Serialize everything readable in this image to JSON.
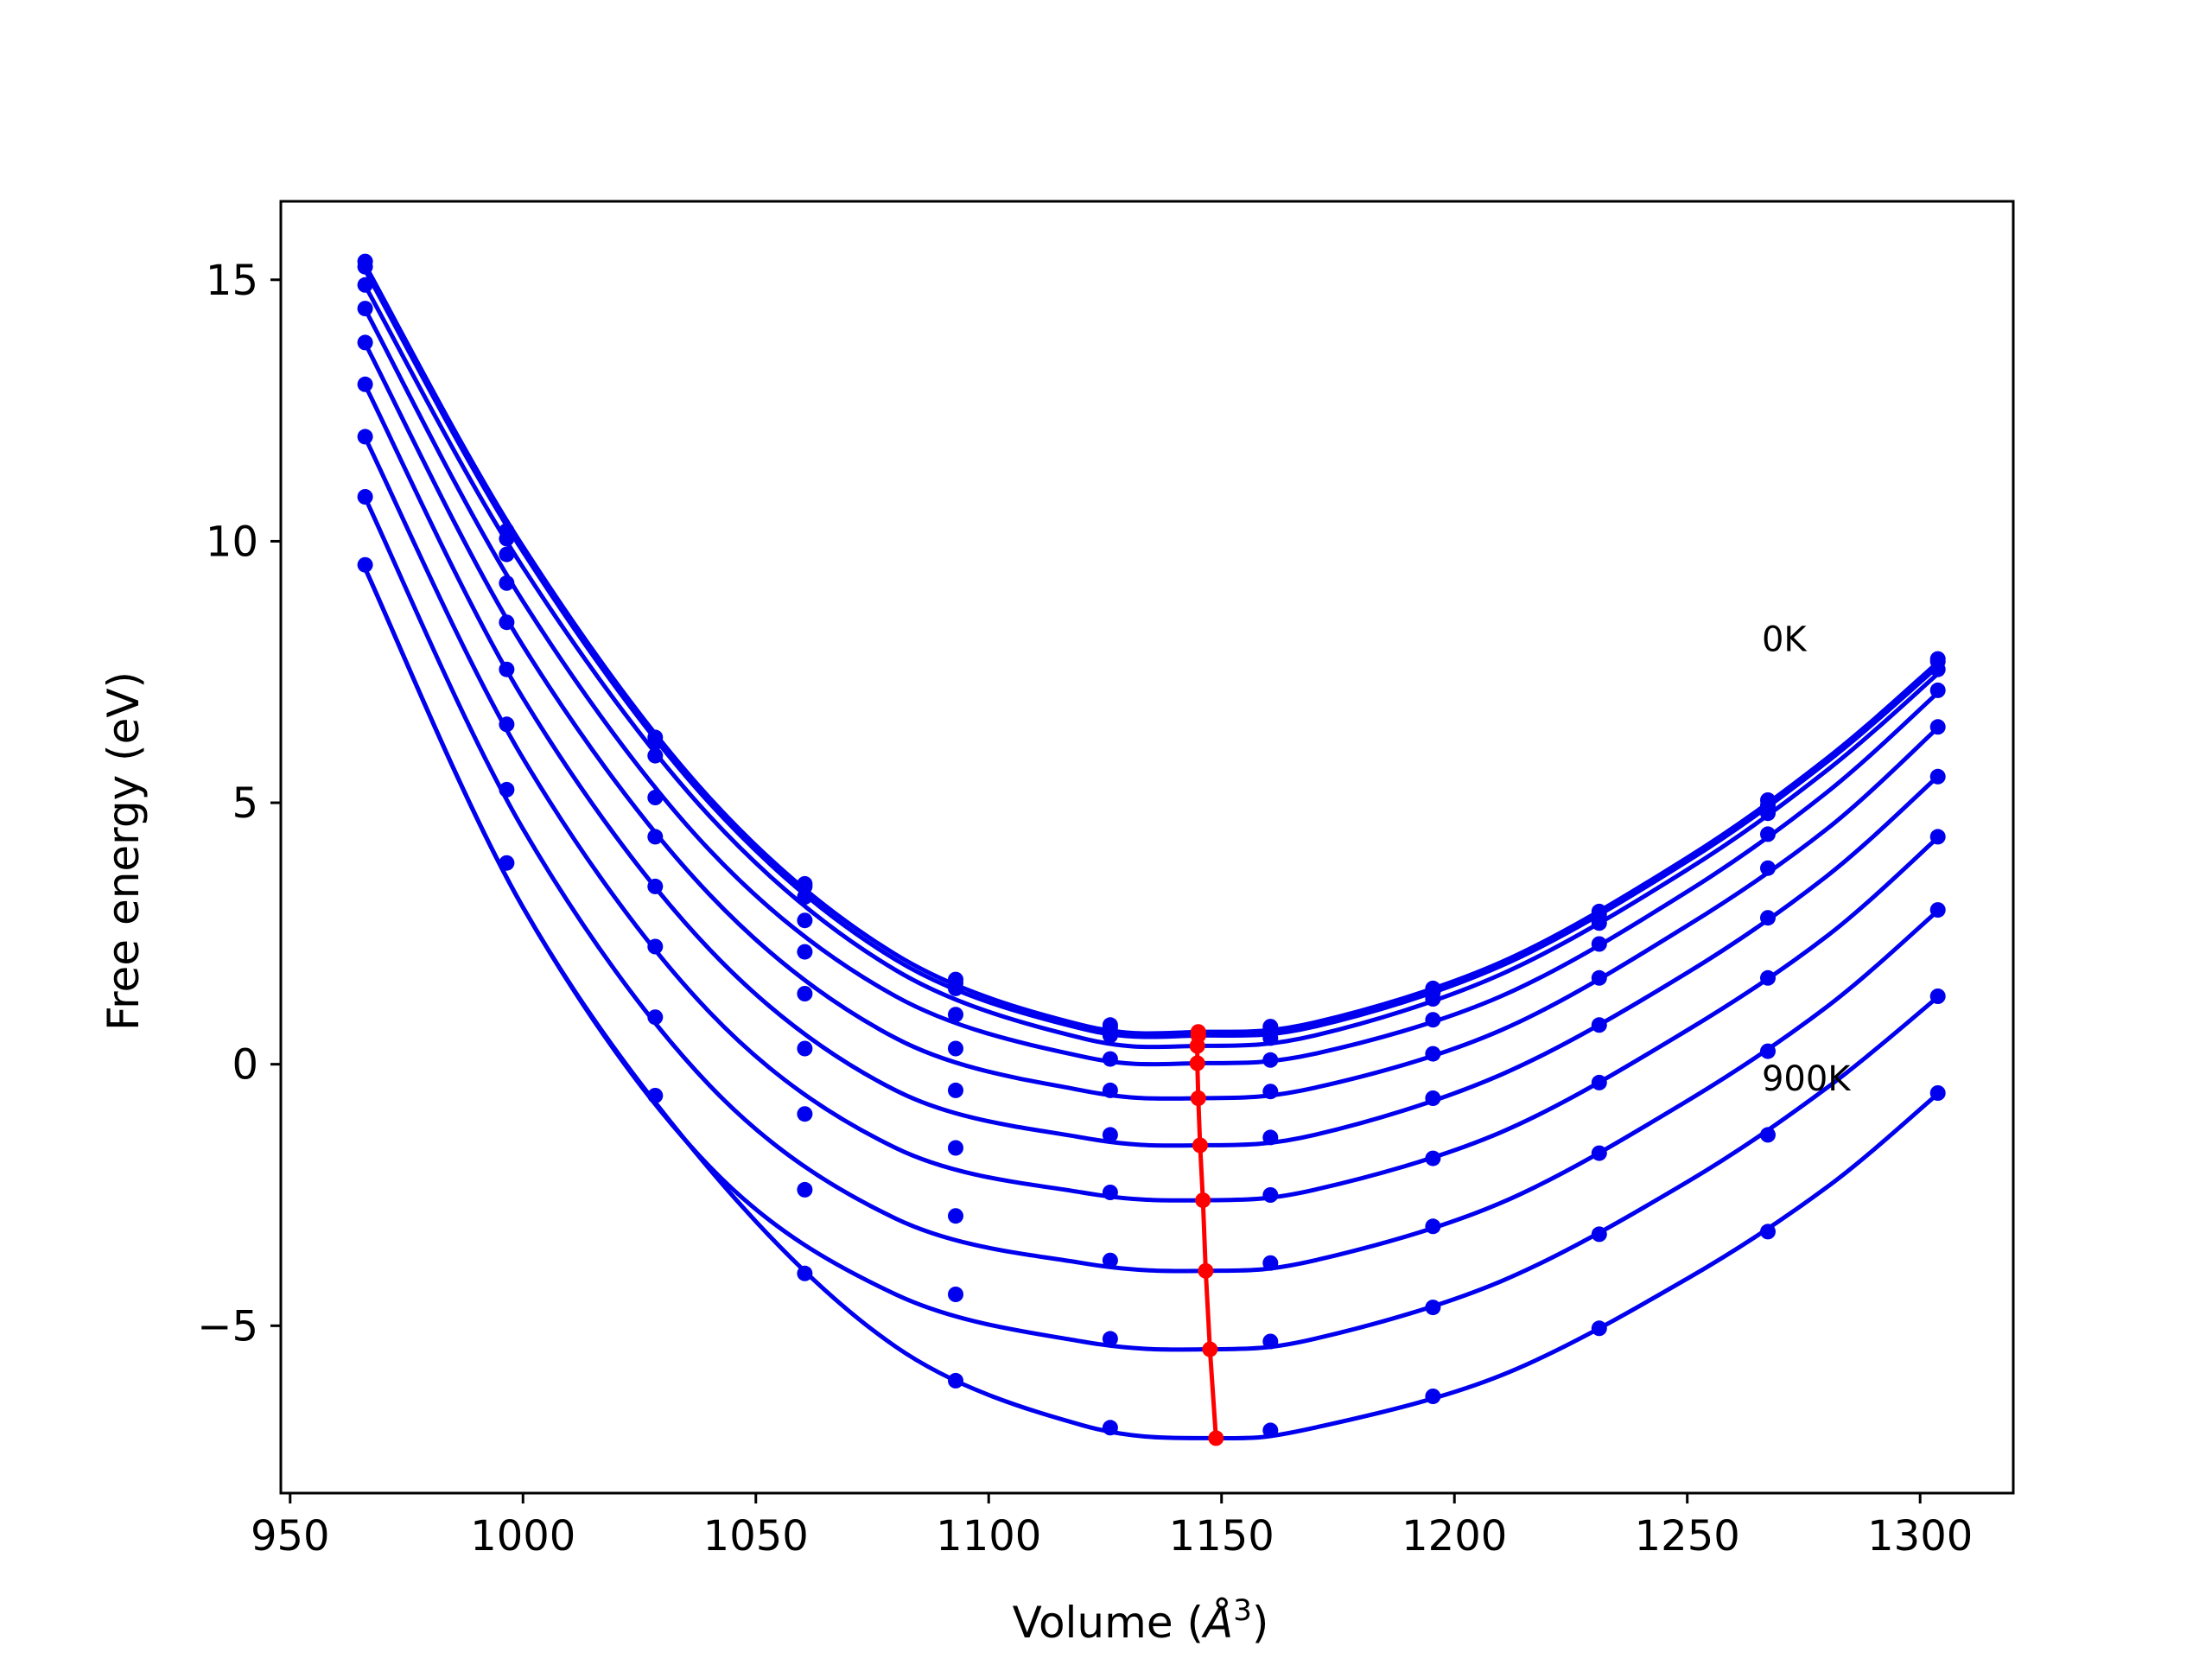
{
  "chart_data": {
    "type": "line",
    "title": "",
    "xlabel": "Volume (Å³)",
    "xlabel_parts": {
      "prefix": "Volume (",
      "symbol": "Å",
      "power": "3",
      "suffix": ")"
    },
    "ylabel": "Free energy (eV)",
    "xlim": [
      948,
      1320
    ],
    "ylim": [
      -8.2,
      16.5
    ],
    "xticks": [
      950,
      1000,
      1050,
      1100,
      1150,
      1200,
      1250,
      1300
    ],
    "yticks": [
      -5,
      0,
      5,
      10,
      15
    ],
    "xtick_labels": [
      "950",
      "1000",
      "1050",
      "1100",
      "1150",
      "1200",
      "1250",
      "1300"
    ],
    "ytick_labels": [
      "−5",
      "0",
      "5",
      "10",
      "15"
    ],
    "grid": false,
    "legend": "none",
    "annotations": [
      {
        "text": "0K",
        "x": 1266,
        "y": 7.9
      },
      {
        "text": "900K",
        "x": 1266,
        "y": -0.5
      }
    ],
    "colors": {
      "curves": "#0000ee",
      "minimum_path": "#ff0000"
    },
    "x": [
      966.1,
      996.5,
      1028.4,
      1060.5,
      1092.9,
      1126.1,
      1160.5,
      1195.4,
      1231.1,
      1267.3,
      1303.8
    ],
    "series": [
      {
        "temperature_index": 0,
        "values": [
          15.35,
          10.2,
          6.25,
          3.45,
          1.62,
          0.75,
          0.72,
          1.45,
          2.92,
          5.05,
          7.75
        ],
        "minimum": {
          "x": 1145.0,
          "y": 0.62
        }
      },
      {
        "temperature_index": 1,
        "values": [
          15.25,
          10.05,
          6.15,
          3.4,
          1.55,
          0.7,
          0.68,
          1.38,
          2.85,
          4.95,
          7.7
        ],
        "minimum": {
          "x": 1145.0,
          "y": 0.55
        }
      },
      {
        "temperature_index": 2,
        "values": [
          14.9,
          9.75,
          5.9,
          3.2,
          1.45,
          0.55,
          0.5,
          1.25,
          2.7,
          4.8,
          7.55
        ],
        "minimum": {
          "x": 1144.8,
          "y": 0.35
        }
      },
      {
        "temperature_index": 3,
        "values": [
          14.45,
          9.2,
          5.1,
          2.75,
          0.95,
          0.1,
          0.08,
          0.85,
          2.3,
          4.4,
          7.15
        ],
        "minimum": {
          "x": 1144.8,
          "y": 0.02
        }
      },
      {
        "temperature_index": 4,
        "values": [
          13.8,
          8.45,
          4.35,
          2.15,
          0.3,
          -0.5,
          -0.52,
          0.2,
          1.65,
          3.75,
          6.45
        ],
        "minimum": {
          "x": 1145.0,
          "y": -0.65
        }
      },
      {
        "temperature_index": 5,
        "values": [
          13.0,
          7.55,
          3.4,
          1.35,
          -0.5,
          -1.35,
          -1.4,
          -0.65,
          0.75,
          2.8,
          5.5
        ],
        "minimum": {
          "x": 1145.4,
          "y": -1.55
        }
      },
      {
        "temperature_index": 6,
        "values": [
          12.0,
          6.5,
          2.25,
          0.3,
          -1.6,
          -2.45,
          -2.5,
          -1.8,
          -0.35,
          1.65,
          4.35
        ],
        "minimum": {
          "x": 1146.0,
          "y": -2.6
        }
      },
      {
        "temperature_index": 7,
        "values": [
          10.85,
          5.25,
          0.9,
          -0.95,
          -2.9,
          -3.75,
          -3.8,
          -3.1,
          -1.7,
          0.25,
          2.95
        ],
        "minimum": {
          "x": 1146.6,
          "y": -3.95
        }
      },
      {
        "temperature_index": 8,
        "values": [
          9.55,
          3.85,
          -0.6,
          -2.4,
          -4.4,
          -5.25,
          -5.3,
          -4.65,
          -3.25,
          -1.35,
          1.3
        ],
        "minimum": {
          "x": 1147.5,
          "y": -5.45
        }
      },
      {
        "temperature_index": 9,
        "values": [
          null,
          null,
          null,
          -4.0,
          -6.05,
          -6.95,
          -7.0,
          -6.35,
          -5.05,
          -3.2,
          -0.55
        ],
        "minimum": {
          "x": 1148.8,
          "y": -7.15
        }
      }
    ],
    "curve_fit": [
      {
        "x": [
          966,
          1000,
          1040,
          1080,
          1120,
          1146,
          1170,
          1210,
          1250,
          1280,
          1304
        ],
        "y": [
          15.3,
          9.9,
          5.1,
          2.1,
          0.75,
          0.62,
          0.8,
          1.95,
          3.95,
          5.85,
          7.7
        ]
      },
      {
        "x": [
          966,
          1000,
          1040,
          1080,
          1120,
          1146,
          1170,
          1210,
          1250,
          1280,
          1304
        ],
        "y": [
          15.2,
          9.8,
          5.0,
          2.0,
          0.68,
          0.55,
          0.72,
          1.88,
          3.88,
          5.78,
          7.62
        ]
      },
      {
        "x": [
          966,
          1000,
          1040,
          1080,
          1120,
          1145,
          1170,
          1210,
          1250,
          1280,
          1304
        ],
        "y": [
          14.9,
          9.5,
          4.75,
          1.8,
          0.5,
          0.35,
          0.55,
          1.72,
          3.72,
          5.62,
          7.48
        ]
      },
      {
        "x": [
          966,
          1000,
          1040,
          1080,
          1120,
          1145,
          1170,
          1210,
          1250,
          1280,
          1304
        ],
        "y": [
          14.45,
          8.85,
          4.1,
          1.3,
          0.15,
          0.02,
          0.2,
          1.3,
          3.3,
          5.2,
          7.12
        ]
      },
      {
        "x": [
          966,
          1000,
          1040,
          1080,
          1120,
          1145,
          1170,
          1210,
          1250,
          1280,
          1304
        ],
        "y": [
          13.8,
          8.0,
          3.25,
          0.5,
          -0.5,
          -0.65,
          -0.45,
          0.65,
          2.65,
          4.5,
          6.45
        ]
      },
      {
        "x": [
          966,
          1000,
          1040,
          1080,
          1120,
          1145,
          1170,
          1210,
          1250,
          1280,
          1304
        ],
        "y": [
          13.0,
          7.0,
          2.2,
          -0.5,
          -1.4,
          -1.55,
          -1.35,
          -0.2,
          1.75,
          3.6,
          5.52
        ]
      },
      {
        "x": [
          966,
          1000,
          1040,
          1080,
          1120,
          1146,
          1170,
          1210,
          1250,
          1280,
          1304
        ],
        "y": [
          12.0,
          5.85,
          1.0,
          -1.6,
          -2.45,
          -2.6,
          -2.4,
          -1.3,
          0.65,
          2.45,
          4.35
        ]
      },
      {
        "x": [
          966,
          1000,
          1040,
          1080,
          1120,
          1147,
          1170,
          1210,
          1250,
          1280,
          1304
        ],
        "y": [
          10.85,
          4.5,
          -0.4,
          -2.95,
          -3.8,
          -3.95,
          -3.75,
          -2.65,
          -0.7,
          1.1,
          2.95
        ]
      },
      {
        "x": [
          966,
          1000,
          1040,
          1080,
          1120,
          1147,
          1170,
          1210,
          1250,
          1280,
          1304
        ],
        "y": [
          9.5,
          3.0,
          -1.95,
          -4.4,
          -5.3,
          -5.45,
          -5.25,
          -4.15,
          -2.25,
          -0.45,
          1.3
        ]
      },
      {
        "x": [
          966,
          1000,
          1040,
          1080,
          1120,
          1149,
          1170,
          1210,
          1250,
          1280,
          1304
        ],
        "y": [
          9.5,
          3.0,
          -2.0,
          -5.4,
          -6.9,
          -7.15,
          -6.95,
          -5.95,
          -4.1,
          -2.35,
          -0.55
        ]
      }
    ]
  }
}
